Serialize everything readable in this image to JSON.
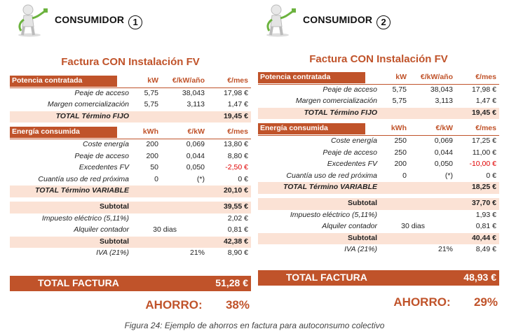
{
  "caption": "Figura 24: Ejemplo de ahorros en factura para autoconsumo colectivo",
  "colors": {
    "accent": "#c0532a",
    "light": "#fbe2d5",
    "negative": "#e00000"
  },
  "consumers": [
    {
      "name": "CONSUMIDOR",
      "number": "1",
      "title": "Factura CON Instalación FV",
      "potencia": {
        "header": [
          "Potencia contratada",
          "kW",
          "€/kW/año",
          "€/mes"
        ],
        "rows": [
          [
            "Peaje de acceso",
            "5,75",
            "38,043",
            "17,98 €"
          ],
          [
            "Margen comercialización",
            "5,75",
            "3,113",
            "1,47 €"
          ]
        ],
        "total": [
          "TOTAL Término FIJO",
          "19,45 €"
        ]
      },
      "energia": {
        "header": [
          "Energía consumida",
          "kWh",
          "€/kW",
          "€/mes"
        ],
        "rows": [
          [
            "Coste energía",
            "200",
            "0,069",
            "13,80 €"
          ],
          [
            "Peaje de acceso",
            "200",
            "0,044",
            "8,80 €"
          ],
          [
            "Excedentes FV",
            "50",
            "0,050",
            "-2,50 €"
          ],
          [
            "Cuantía uso de red próxima",
            "0",
            "(*)",
            "0 €"
          ]
        ],
        "total": [
          "TOTAL Término VARIABLE",
          "20,10 €"
        ]
      },
      "subtotal1": [
        "Subtotal",
        "39,55 €"
      ],
      "impuesto": [
        "Impuesto eléctrico (5,11%)",
        "2,02 €"
      ],
      "alquiler": [
        "Alquiler contador",
        "30 dias",
        "0,81 €"
      ],
      "subtotal2": [
        "Subtotal",
        "42,38 €"
      ],
      "iva": [
        "IVA (21%)",
        "21%",
        "8,90 €"
      ],
      "total_factura": [
        "TOTAL FACTURA",
        "51,28 €"
      ],
      "ahorro": [
        "AHORRO:",
        "38%"
      ]
    },
    {
      "name": "CONSUMIDOR",
      "number": "2",
      "title": "Factura CON Instalación FV",
      "potencia": {
        "header": [
          "Potencia contratada",
          "kW",
          "€/kW/año",
          "€/mes"
        ],
        "rows": [
          [
            "Peaje de acceso",
            "5,75",
            "38,043",
            "17,98 €"
          ],
          [
            "Margen comercialización",
            "5,75",
            "3,113",
            "1,47 €"
          ]
        ],
        "total": [
          "TOTAL Término FIJO",
          "19,45 €"
        ]
      },
      "energia": {
        "header": [
          "Energía consumida",
          "kWh",
          "€/kW",
          "€/mes"
        ],
        "rows": [
          [
            "Coste energía",
            "250",
            "0,069",
            "17,25 €"
          ],
          [
            "Peaje de acceso",
            "250",
            "0,044",
            "11,00 €"
          ],
          [
            "Excedentes FV",
            "200",
            "0,050",
            "-10,00 €"
          ],
          [
            "Cuantía uso de red próxima",
            "0",
            "(*)",
            "0 €"
          ]
        ],
        "total": [
          "TOTAL Término VARIABLE",
          "18,25 €"
        ]
      },
      "subtotal1": [
        "Subtotal",
        "37,70 €"
      ],
      "impuesto": [
        "Impuesto eléctrico (5,11%)",
        "1,93 €"
      ],
      "alquiler": [
        "Alquiler contador",
        "30 dias",
        "0,81 €"
      ],
      "subtotal2": [
        "Subtotal",
        "40,44 €"
      ],
      "iva": [
        "IVA (21%)",
        "21%",
        "8,49 €"
      ],
      "total_factura": [
        "TOTAL FACTURA",
        "48,93 €"
      ],
      "ahorro": [
        "AHORRO:",
        "29%"
      ]
    }
  ]
}
